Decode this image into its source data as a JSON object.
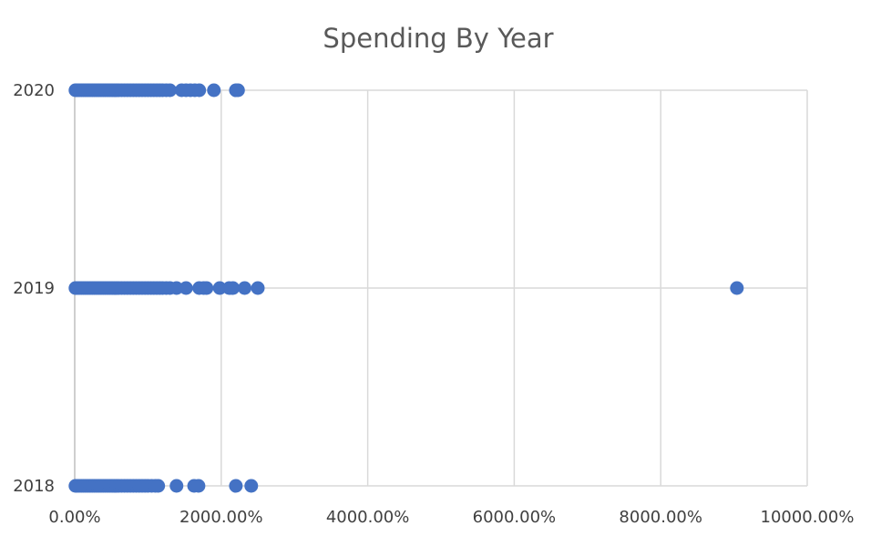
{
  "chart_data": {
    "type": "scatter",
    "title": "Spending By Year",
    "xlabel": "",
    "ylabel": "",
    "xlim": [
      0,
      10000
    ],
    "x_ticks": [
      0,
      2000,
      4000,
      6000,
      8000,
      10000
    ],
    "x_tick_labels": [
      "0.00%",
      "2000.00%",
      "4000.00%",
      "6000.00%",
      "8000.00%",
      "10000.00%"
    ],
    "y_categories": [
      "2018",
      "2019",
      "2020"
    ],
    "grid": true,
    "marker_color": "#4472C4",
    "series": [
      {
        "category": "2020",
        "x": [
          10,
          30,
          60,
          90,
          120,
          150,
          180,
          210,
          240,
          270,
          300,
          330,
          360,
          390,
          420,
          450,
          480,
          510,
          540,
          570,
          600,
          640,
          680,
          720,
          760,
          800,
          840,
          880,
          920,
          960,
          1000,
          1040,
          1080,
          1120,
          1160,
          1200,
          1250,
          1300,
          1460,
          1520,
          1580,
          1640,
          1700,
          1900,
          2200,
          2230
        ]
      },
      {
        "category": "2019",
        "x": [
          10,
          30,
          60,
          90,
          120,
          150,
          180,
          210,
          240,
          270,
          300,
          330,
          360,
          390,
          420,
          450,
          480,
          510,
          540,
          570,
          600,
          640,
          680,
          720,
          760,
          800,
          840,
          880,
          920,
          960,
          1000,
          1040,
          1080,
          1120,
          1160,
          1200,
          1250,
          1300,
          1390,
          1520,
          1700,
          1760,
          1800,
          1980,
          2110,
          2160,
          2320,
          2500,
          9040
        ]
      },
      {
        "category": "2018",
        "x": [
          10,
          30,
          60,
          90,
          120,
          150,
          180,
          210,
          240,
          270,
          300,
          330,
          360,
          390,
          420,
          450,
          480,
          510,
          540,
          570,
          600,
          640,
          680,
          720,
          760,
          800,
          840,
          880,
          920,
          960,
          1000,
          1050,
          1100,
          1140,
          1390,
          1630,
          1690,
          2200,
          2410
        ]
      }
    ]
  }
}
